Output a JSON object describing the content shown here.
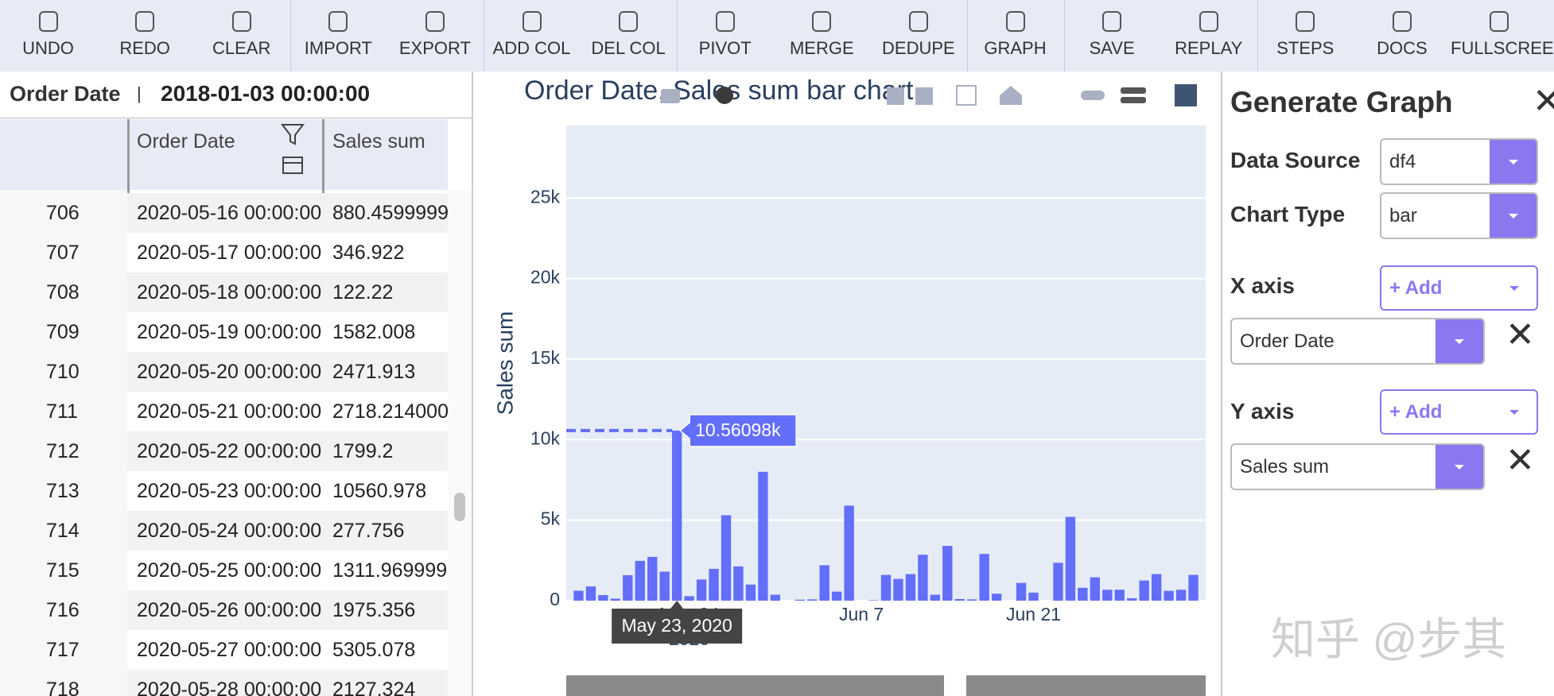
{
  "toolbar": {
    "buttons": [
      "UNDO",
      "REDO",
      "CLEAR",
      "IMPORT",
      "EXPORT",
      "ADD COL",
      "DEL COL",
      "PIVOT",
      "MERGE",
      "DEDUPE",
      "GRAPH",
      "SAVE",
      "REPLAY",
      "STEPS",
      "DOCS",
      "FULLSCREEN"
    ]
  },
  "table": {
    "filter_column": "Order Date",
    "filter_value": "2018-01-03 00:00:00",
    "columns": [
      "Order Date",
      "Sales sum"
    ],
    "rows": [
      [
        706,
        "2020-05-16 00:00:00",
        "880.4599999"
      ],
      [
        707,
        "2020-05-17 00:00:00",
        "346.922"
      ],
      [
        708,
        "2020-05-18 00:00:00",
        "122.22"
      ],
      [
        709,
        "2020-05-19 00:00:00",
        "1582.008"
      ],
      [
        710,
        "2020-05-20 00:00:00",
        "2471.913"
      ],
      [
        711,
        "2020-05-21 00:00:00",
        "2718.214000"
      ],
      [
        712,
        "2020-05-22 00:00:00",
        "1799.2"
      ],
      [
        713,
        "2020-05-23 00:00:00",
        "10560.978"
      ],
      [
        714,
        "2020-05-24 00:00:00",
        "277.756"
      ],
      [
        715,
        "2020-05-25 00:00:00",
        "1311.969999"
      ],
      [
        716,
        "2020-05-26 00:00:00",
        "1975.356"
      ],
      [
        717,
        "2020-05-27 00:00:00",
        "5305.078"
      ],
      [
        718,
        "2020-05-28 00:00:00",
        "2127.324"
      ]
    ]
  },
  "chart_data": {
    "type": "bar",
    "title": "Order Date, Sales sum bar chart",
    "y_label": "Sales sum",
    "color": "#636efa",
    "x": [
      "2020-05-15",
      "2020-05-16",
      "2020-05-17",
      "2020-05-18",
      "2020-05-19",
      "2020-05-20",
      "2020-05-21",
      "2020-05-22",
      "2020-05-23",
      "2020-05-24",
      "2020-05-25",
      "2020-05-26",
      "2020-05-27",
      "2020-05-28",
      "2020-05-29",
      "2020-05-30",
      "2020-05-31",
      "2020-06-01",
      "2020-06-02",
      "2020-06-03",
      "2020-06-04",
      "2020-06-05",
      "2020-06-06",
      "2020-06-07",
      "2020-06-08",
      "2020-06-09",
      "2020-06-10",
      "2020-06-11",
      "2020-06-12",
      "2020-06-13",
      "2020-06-14",
      "2020-06-15",
      "2020-06-16",
      "2020-06-17",
      "2020-06-18",
      "2020-06-19",
      "2020-06-20",
      "2020-06-21",
      "2020-06-22",
      "2020-06-23",
      "2020-06-24",
      "2020-06-25",
      "2020-06-26",
      "2020-06-27",
      "2020-06-28",
      "2020-06-29",
      "2020-06-30",
      "2020-07-01",
      "2020-07-02",
      "2020-07-03",
      "2020-07-04"
    ],
    "values": [
      620,
      880.46,
      346.922,
      122.22,
      1582.008,
      2471.913,
      2718.214,
      1799.2,
      10560.978,
      277.756,
      1311.97,
      1975.356,
      5305.078,
      2127.324,
      1000,
      8000,
      370,
      null,
      60,
      80,
      2200,
      560,
      5900,
      null,
      30,
      1600,
      1350,
      1650,
      2850,
      370,
      3400,
      100,
      80,
      2900,
      430,
      null,
      1100,
      500,
      null,
      2350,
      5200,
      800,
      1450,
      680,
      680,
      150,
      1250,
      1650,
      610,
      680,
      1600
    ],
    "xlim": [
      "2020-05-14",
      "2020-07-05"
    ],
    "xticks": [
      {
        "value": "2020-05-24",
        "label": "May 24"
      },
      {
        "value": "2020-06-07",
        "label": "Jun 7"
      },
      {
        "value": "2020-06-21",
        "label": "Jun 21"
      }
    ],
    "x_year": "2020",
    "ylim": [
      0,
      29500
    ],
    "yticks": [
      0,
      {
        "value": 5000,
        "label": "5k"
      },
      {
        "value": 10000,
        "label": "10k"
      },
      {
        "value": 15000,
        "label": "15k"
      },
      {
        "value": 20000,
        "label": "20k"
      },
      {
        "value": 25000,
        "label": "25k"
      }
    ],
    "grid": true,
    "hover": {
      "x": "2020-05-23",
      "label": "10.56098k",
      "x_label": "May 23, 2020"
    }
  },
  "panel": {
    "title": "Generate Graph",
    "data_source_label": "Data Source",
    "data_source": "df4",
    "chart_type_label": "Chart Type",
    "chart_type": "bar",
    "x_axis_label": "X axis",
    "x_add": "+ Add",
    "x_field": "Order Date",
    "y_axis_label": "Y axis",
    "y_add": "+ Add",
    "y_field": "Sales sum"
  },
  "watermark": "知乎 @步其"
}
